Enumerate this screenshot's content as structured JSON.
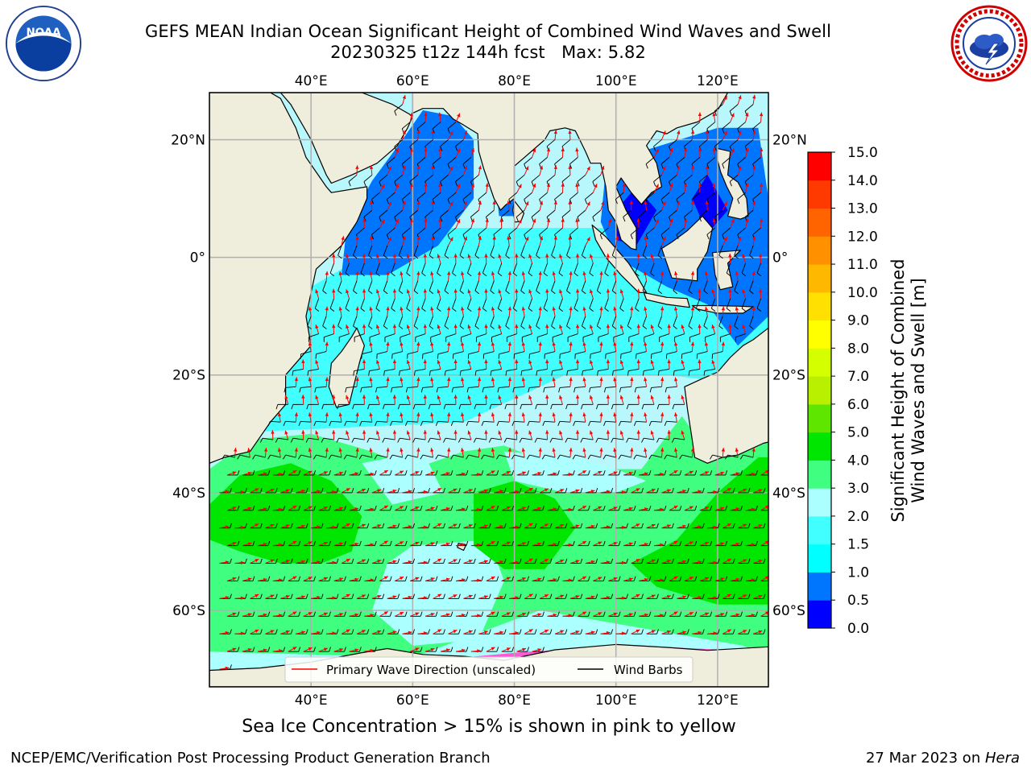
{
  "title": {
    "line1": "GEFS MEAN Indian Ocean Significant Height of Combined Wind Waves and Swell",
    "line2": "20230325 t12z 144h fcst   Max: 5.82"
  },
  "logos": {
    "left": {
      "name": "noaa-logo",
      "text": "NOAA",
      "ring_text": "NATIONAL OCEANIC AND ATMOSPHERIC ADMINISTRATION · U.S. DEPARTMENT OF COMMERCE"
    },
    "right": {
      "name": "nws-logo",
      "ring_text": "NATIONAL WEATHER SERVICE"
    }
  },
  "map": {
    "lon_ticks": [
      "40°E",
      "60°E",
      "80°E",
      "100°E",
      "120°E"
    ],
    "lon_values": [
      40,
      60,
      80,
      100,
      120
    ],
    "lat_ticks": [
      "20°N",
      "0°",
      "20°S",
      "40°S",
      "60°S"
    ],
    "lat_values": [
      20,
      0,
      -20,
      -40,
      -60
    ],
    "lon_range": [
      20,
      130
    ],
    "lat_range": [
      -73,
      28
    ],
    "gridlines": true,
    "land_color": "#efeddc",
    "wave_arrow_color": "#ff0000",
    "wind_barb_color": "#000000",
    "legend": {
      "placement": "bottom-center",
      "items": [
        {
          "label": "Primary Wave Direction (unscaled)",
          "color": "#ff0000"
        },
        {
          "label": "Wind Barbs",
          "color": "#000000"
        }
      ]
    }
  },
  "colorbar": {
    "label_line1": "Significant Height of Combined",
    "label_line2": "Wind Waves and Swell [m]",
    "ticks": [
      "0.0",
      "0.5",
      "1.0",
      "1.5",
      "2.0",
      "3.0",
      "4.0",
      "5.0",
      "6.0",
      "7.0",
      "8.0",
      "9.0",
      "10.0",
      "11.0",
      "12.0",
      "13.0",
      "14.0",
      "15.0"
    ],
    "colors": [
      "#0000ff",
      "#0076ff",
      "#00ffff",
      "#42ffff",
      "#acffff",
      "#40ff80",
      "#00e600",
      "#5ee600",
      "#b8f000",
      "#d4ff00",
      "#ffff00",
      "#ffe000",
      "#ffb800",
      "#ff9000",
      "#ff6400",
      "#ff3a00",
      "#ff0000"
    ]
  },
  "subtitle": "Sea Ice Concentration > 15% is shown in pink to yellow",
  "footer": {
    "left": "NCEP/EMC/Verification Post Processing Product Generation Branch",
    "right_date": "27 Mar 2023 on ",
    "right_host": "Hera"
  }
}
